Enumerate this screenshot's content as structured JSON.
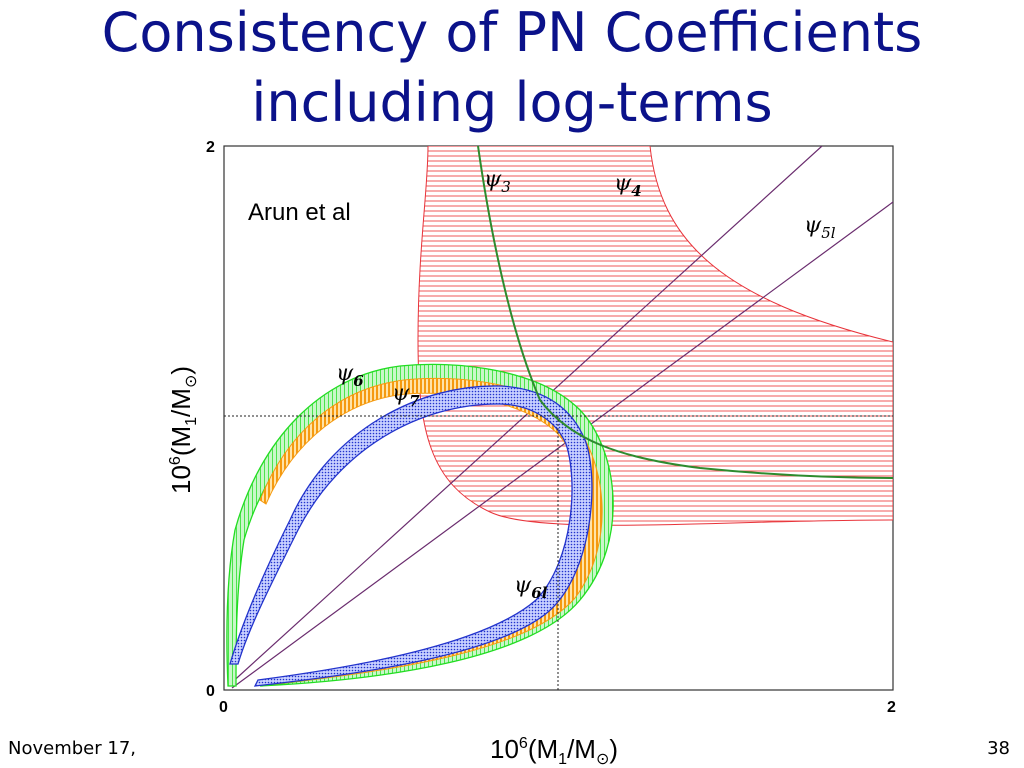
{
  "slide": {
    "title_line1": "Consistency of PN Coefficients",
    "title_line2": "including log-terms",
    "footer_date": "November 17,",
    "page_number": "38"
  },
  "chart_data": {
    "type": "area",
    "annotation": "Arun et al",
    "xlabel_base": "10",
    "xlabel_exp": "6",
    "xlabel_body": "(M",
    "xlabel_sub": "1",
    "xlabel_tail": "/M",
    "xlabel_sun": "⊙",
    "xlabel_close": ")",
    "ylabel_base": "10",
    "ylabel_exp": "6",
    "ylabel_body": "(M",
    "ylabel_sub": "1",
    "ylabel_tail": "/M",
    "ylabel_sun": "⊙",
    "ylabel_close": ")",
    "xlim": [
      0,
      2
    ],
    "ylim": [
      0,
      2
    ],
    "x_ticks": [
      "0",
      "2"
    ],
    "y_ticks": [
      "0",
      "2"
    ],
    "true_point": {
      "x": 1.0,
      "y": 1.0
    },
    "series": [
      {
        "name": "ψ3",
        "label_main": "ψ",
        "label_sub": "3",
        "color": "#2e8b2e",
        "style": "curve"
      },
      {
        "name": "ψ4",
        "label_main": "ψ",
        "label_sub": "4",
        "color": "#e8333a",
        "style": "hatched-band"
      },
      {
        "name": "ψ5l",
        "label_main": "ψ",
        "label_sub": "5l",
        "color": "#6a2c6e",
        "style": "thin-band"
      },
      {
        "name": "ψ6",
        "label_main": "ψ",
        "label_sub": "6",
        "color": "#22dd22",
        "style": "loop-band"
      },
      {
        "name": "ψ6l",
        "label_main": "ψ",
        "label_sub": "6l",
        "color": "#2233cc",
        "style": "loop-band"
      },
      {
        "name": "ψ7",
        "label_main": "ψ",
        "label_sub": "7",
        "color": "#f5a21a",
        "style": "loop-band"
      }
    ],
    "grid": false
  }
}
